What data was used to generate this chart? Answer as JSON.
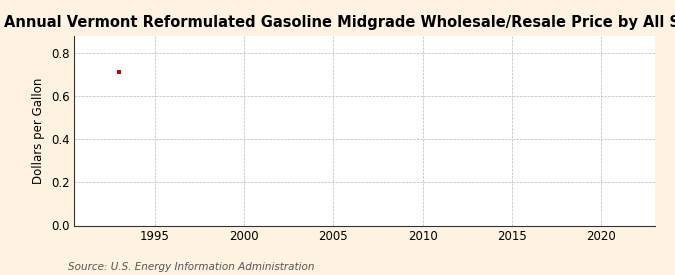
{
  "title": "Annual Vermont Reformulated Gasoline Midgrade Wholesale/Resale Price by All Sellers",
  "ylabel": "Dollars per Gallon",
  "source": "Source: U.S. Energy Information Administration",
  "xlim": [
    1990.5,
    2023
  ],
  "ylim": [
    0.0,
    0.88
  ],
  "xticks": [
    1995,
    2000,
    2005,
    2010,
    2015,
    2020
  ],
  "yticks": [
    0.0,
    0.2,
    0.4,
    0.6,
    0.8
  ],
  "data_x": [
    1993
  ],
  "data_y": [
    0.714
  ],
  "point_color": "#cc0000",
  "bg_color": "#fdf3e0",
  "plot_bg_color": "#ffffff",
  "grid_color": "#bbbbbb",
  "title_fontsize": 10.5,
  "label_fontsize": 8.5,
  "tick_fontsize": 8.5,
  "source_fontsize": 7.5
}
